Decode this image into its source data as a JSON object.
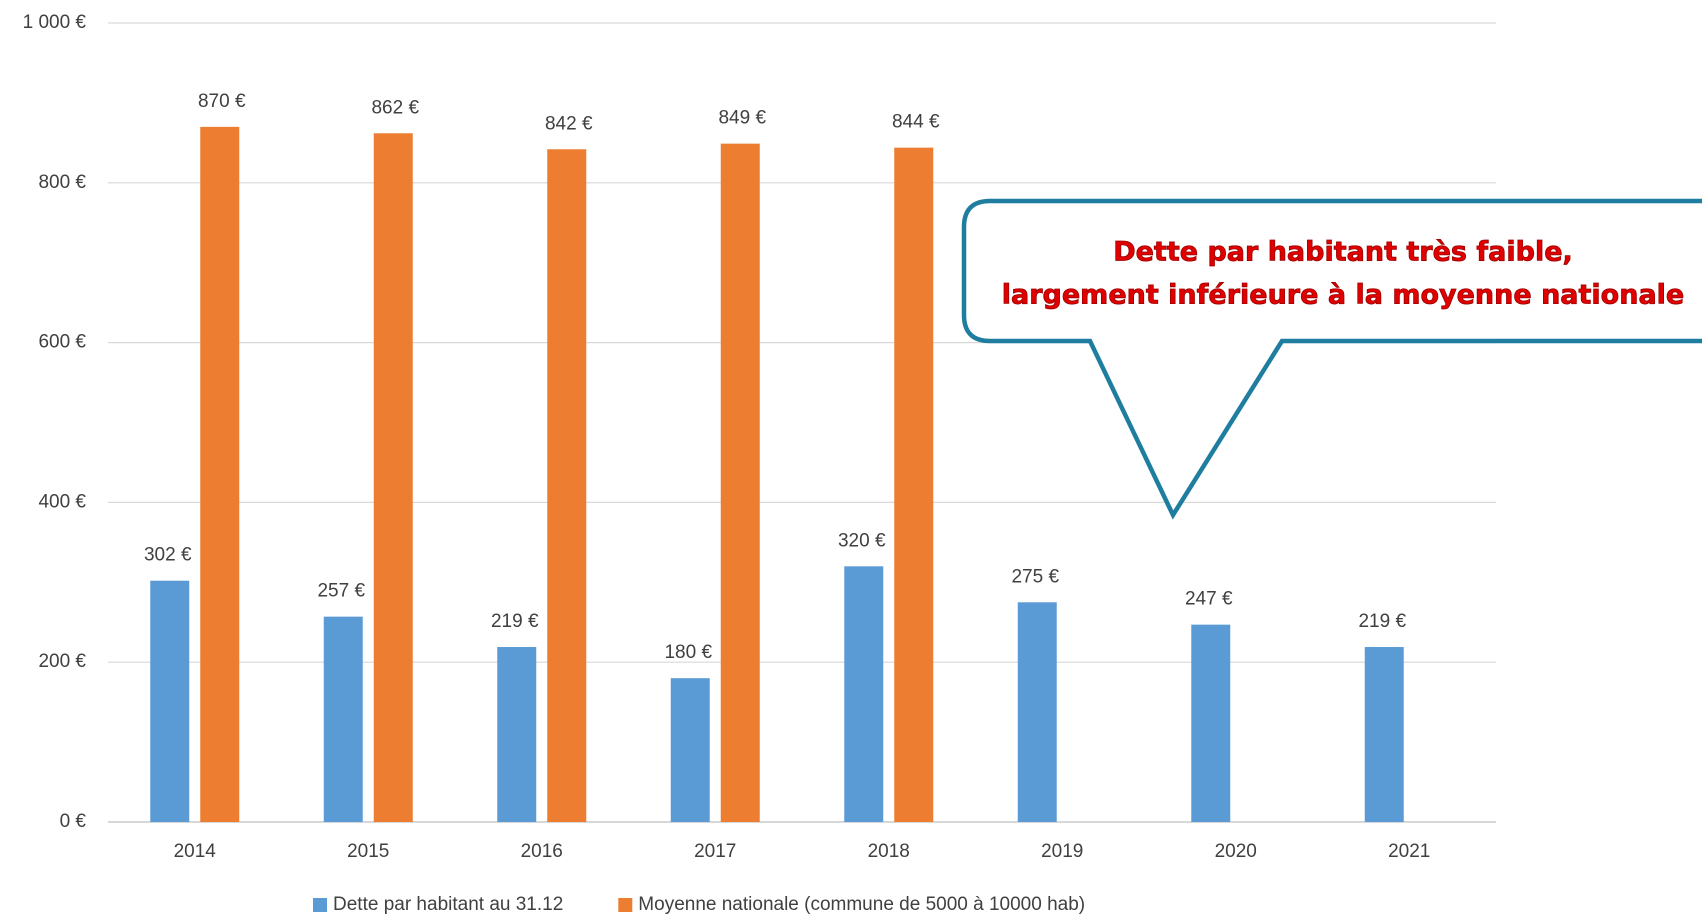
{
  "chart_data": {
    "type": "bar",
    "categories": [
      "2014",
      "2015",
      "2016",
      "2017",
      "2018",
      "2019",
      "2020",
      "2021"
    ],
    "series": [
      {
        "name": "Dette par habitant au 31.12",
        "color": "#5b9bd5",
        "values": [
          302,
          257,
          219,
          180,
          320,
          275,
          247,
          219
        ],
        "value_labels": [
          "302 €",
          "257 €",
          "219 €",
          "180 €",
          "320 €",
          "275 €",
          "247 €",
          "219 €"
        ]
      },
      {
        "name": "Moyenne nationale (commune de 5000 à 10000 hab)",
        "color": "#ed7d31",
        "values": [
          870,
          862,
          842,
          849,
          844,
          null,
          null,
          null
        ],
        "value_labels": [
          "870 €",
          "862 €",
          "842 €",
          "849 €",
          "844 €",
          null,
          null,
          null
        ]
      }
    ],
    "ylim": [
      0,
      1000
    ],
    "yticks": [
      {
        "value": 0,
        "label": "0 €"
      },
      {
        "value": 200,
        "label": "200 €"
      },
      {
        "value": 400,
        "label": "400 €"
      },
      {
        "value": 600,
        "label": "600 €"
      },
      {
        "value": 800,
        "label": "800 €"
      },
      {
        "value": 1000,
        "label": "1 000 €"
      }
    ],
    "grid": true,
    "legend": "bottom",
    "annotation": [
      "Dette par habitant très faible,",
      "largement inférieure à la moyenne nationale"
    ]
  }
}
